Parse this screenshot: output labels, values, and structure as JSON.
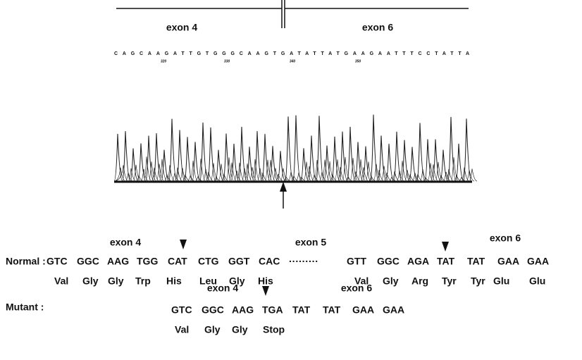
{
  "top": {
    "exon_left": "exon 4",
    "exon_right": "exon 6",
    "sequence": "CAGCAAGATTGTGGGCAAGTGATATTATGAAGAATTTCCTATTA",
    "positions": [
      "320",
      "330",
      "340",
      "350"
    ]
  },
  "normal": {
    "label": "Normal :",
    "exons": [
      "exon 4",
      "exon 5",
      "exon 6"
    ],
    "codons": [
      "GTC",
      "GGC",
      "AAG",
      "TGG",
      "CAT",
      "CTG",
      "GGT",
      "CAC",
      "·········",
      "GTT",
      "GGC",
      "AGA",
      "TAT",
      "TAT",
      "GAA",
      "GAA"
    ],
    "amino_acids": [
      "Val",
      "Gly",
      "Gly",
      "Trp",
      "His",
      "Leu",
      "Gly",
      "His",
      "Val",
      "Gly",
      "Arg",
      "Tyr",
      "Tyr",
      "Glu",
      "Glu"
    ]
  },
  "mutant": {
    "label": "Mutant :",
    "exons": [
      "exon 4",
      "exon 6"
    ],
    "codons": [
      "GTC",
      "GGC",
      "AAG",
      "TGA",
      "TAT",
      "TAT",
      "GAA",
      "GAA"
    ],
    "amino_acids": [
      "Val",
      "Gly",
      "Gly",
      "Stop"
    ]
  }
}
